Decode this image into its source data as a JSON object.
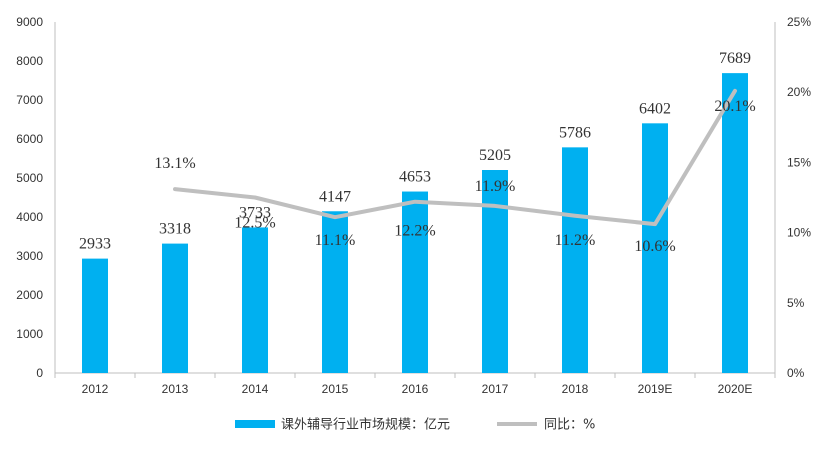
{
  "chart_data": {
    "type": "bar",
    "categories": [
      "2012",
      "2013",
      "2014",
      "2015",
      "2016",
      "2017",
      "2018",
      "2019E",
      "2020E"
    ],
    "series": [
      {
        "name": "课外辅导行业市场规模：亿元",
        "type": "bar",
        "axis": "left",
        "values": [
          2933,
          3318,
          3733,
          4147,
          4653,
          5205,
          5786,
          6402,
          7689
        ],
        "labels": [
          "2933",
          "3318",
          "3733",
          "4147",
          "4653",
          "5205",
          "5786",
          "6402",
          "7689"
        ],
        "color": "#00b0f0"
      },
      {
        "name": "同比：%",
        "type": "line",
        "axis": "right",
        "values": [
          null,
          13.1,
          12.5,
          11.1,
          12.2,
          11.9,
          11.2,
          10.6,
          20.1
        ],
        "labels": [
          "",
          "13.1%",
          "12.5%",
          "11.1%",
          "12.2%",
          "11.9%",
          "11.2%",
          "10.6%",
          "20.1%"
        ],
        "color": "#bfbfbf"
      }
    ],
    "left_axis": {
      "ylim": [
        0,
        9000
      ],
      "ticks": [
        "0",
        "1000",
        "2000",
        "3000",
        "4000",
        "5000",
        "6000",
        "7000",
        "8000",
        "9000"
      ]
    },
    "right_axis": {
      "ylim": [
        0,
        25
      ],
      "ticks": [
        "0%",
        "5%",
        "10%",
        "15%",
        "20%",
        "25%"
      ]
    },
    "grid": false,
    "legend_position": "bottom"
  }
}
